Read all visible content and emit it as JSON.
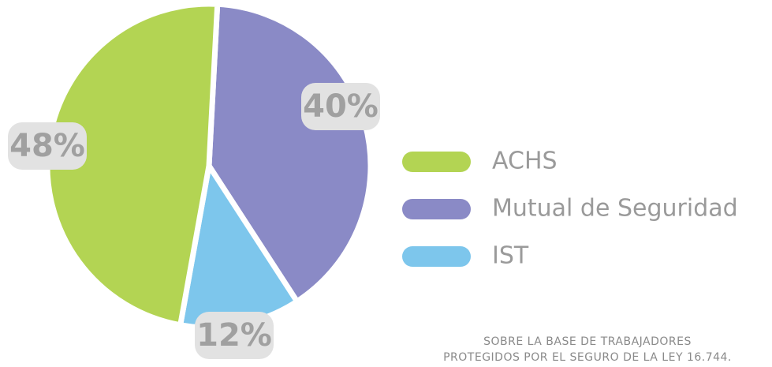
{
  "chart_data": {
    "type": "pie",
    "categories": [
      "Mutual de Seguridad",
      "IST",
      "ACHS"
    ],
    "values": [
      40,
      12,
      48
    ],
    "value_labels": [
      "40%",
      "12%",
      "48%"
    ],
    "colors": [
      "#8a8ac6",
      "#7dc6ec",
      "#b3d453"
    ],
    "legend_order": [
      "ACHS",
      "Mutual de Seguridad",
      "IST"
    ],
    "note": [
      "SOBRE LA BASE DE TRABAJADORES",
      "PROTEGIDOS POR EL SEGURO DE LA LEY 16.744."
    ]
  }
}
